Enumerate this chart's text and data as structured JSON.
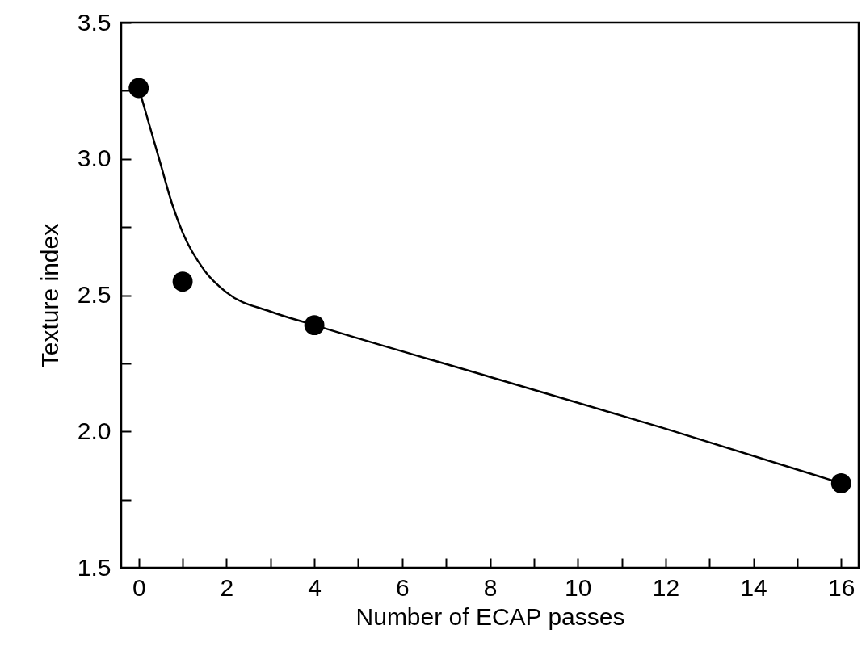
{
  "chart_data": {
    "type": "scatter",
    "xlabel": "Number of ECAP passes",
    "ylabel": "Texture index",
    "series": [
      {
        "type": "line",
        "color": "#000000",
        "line_style": "solid",
        "marker": "none",
        "x": [
          0,
          0.25,
          0.5,
          0.75,
          1,
          1.5,
          2,
          3,
          4,
          8,
          12,
          16
        ],
        "values": [
          3.26,
          3.12,
          2.98,
          2.84,
          2.73,
          2.59,
          2.51,
          2.44,
          2.39,
          2.2,
          2.01,
          1.81
        ]
      },
      {
        "color": "#000000",
        "marker": "circle",
        "x": [
          0,
          1,
          4,
          16
        ],
        "values": [
          3.26,
          2.55,
          2.39,
          1.81
        ]
      }
    ],
    "xlim": [
      -0.4,
      16.4
    ],
    "xticks": [
      0,
      {
        "value": 1,
        "label": null
      },
      2,
      {
        "value": 3,
        "label": null
      },
      4,
      {
        "value": 5,
        "label": null
      },
      6,
      {
        "value": 7,
        "label": null
      },
      8,
      {
        "value": 9,
        "label": null
      },
      10,
      {
        "value": 11,
        "label": null
      },
      12,
      {
        "value": 13,
        "label": null
      },
      14,
      {
        "value": 15,
        "label": null
      },
      16
    ],
    "ylim": [
      1.5,
      3.5
    ],
    "yticks": [
      {
        "value": 1.5,
        "label": "1.5"
      },
      {
        "value": 1.75,
        "label": null
      },
      {
        "value": 2,
        "label": "2.0"
      },
      {
        "value": 2.25,
        "label": null
      },
      {
        "value": 2.5,
        "label": "2.5"
      },
      {
        "value": 2.75,
        "label": null
      },
      {
        "value": 3,
        "label": "3.0"
      },
      {
        "value": 3.25,
        "label": null
      },
      {
        "value": 3.5,
        "label": "3.5"
      }
    ],
    "grid": false
  }
}
